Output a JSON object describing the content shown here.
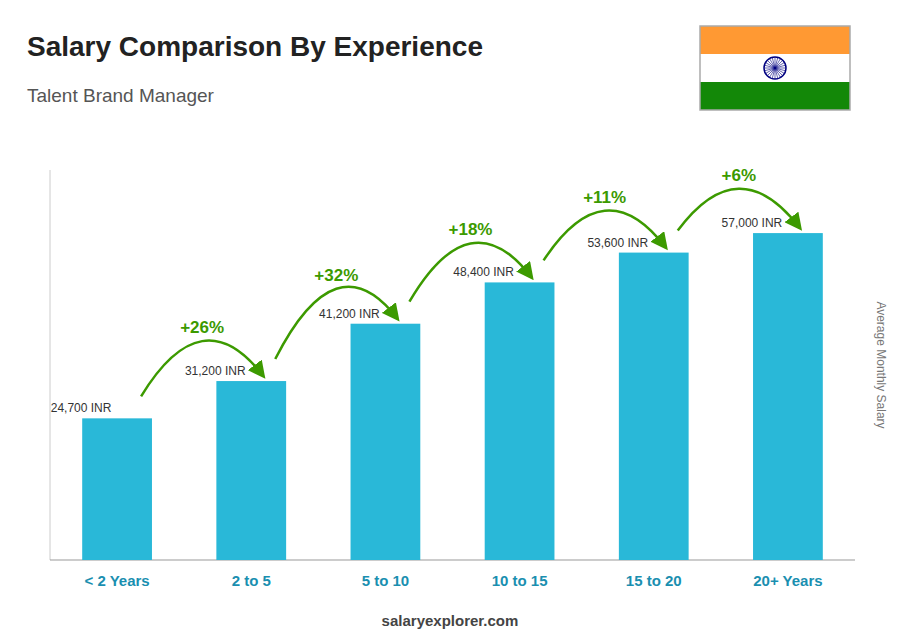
{
  "chart_data": {
    "type": "bar",
    "title": "Salary Comparison By Experience",
    "subtitle": "Talent Brand Manager",
    "ylabel": "Average Monthly Salary",
    "categories": [
      "< 2 Years",
      "2 to 5",
      "5 to 10",
      "10 to 15",
      "15 to 20",
      "20+ Years"
    ],
    "values": [
      24700,
      31200,
      41200,
      48400,
      53600,
      57000
    ],
    "value_labels": [
      "24,700 INR",
      "31,200 INR",
      "41,200 INR",
      "48,400 INR",
      "53,600 INR",
      "57,000 INR"
    ],
    "annotations": [
      "+26%",
      "+32%",
      "+18%",
      "+11%",
      "+6%"
    ],
    "source": "salaryexplorer.com",
    "color": "#29b8d8",
    "ylim": [
      0,
      68000
    ],
    "grid": false,
    "data_labels": true,
    "tick_labels": "x"
  }
}
